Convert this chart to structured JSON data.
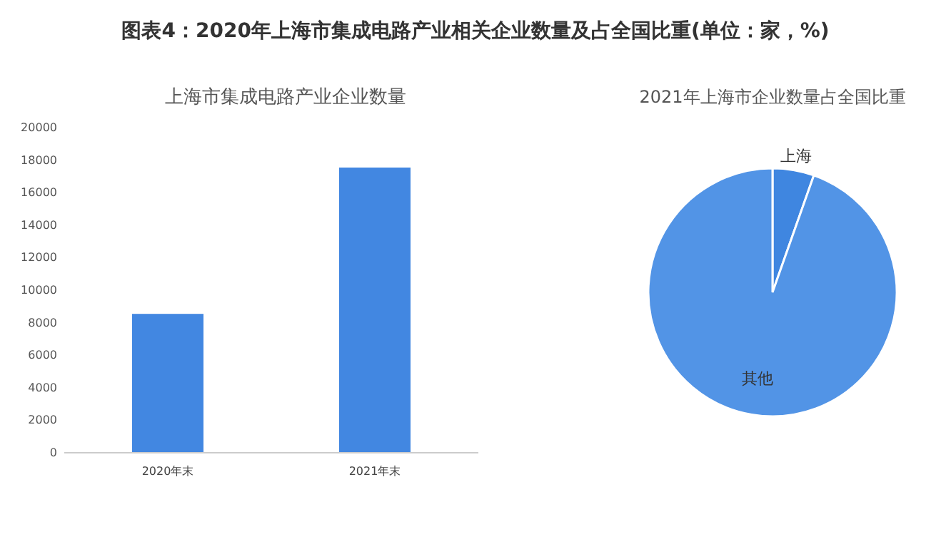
{
  "chart_data": [
    {
      "type": "bar",
      "title": "图表4：2020年上海市集成电路产业相关企业数量及占全国比重(单位：家，%)",
      "subtitle": "上海市集成电路产业企业数量",
      "categories": [
        "2020年末",
        "2021年末"
      ],
      "values": [
        8500,
        17500
      ],
      "color": "#4287e1",
      "ylim": [
        0,
        20000
      ],
      "yticks": [
        0,
        2000,
        4000,
        6000,
        8000,
        10000,
        12000,
        14000,
        16000,
        18000,
        20000
      ]
    },
    {
      "type": "pie",
      "title": "2021年上海市企业数量占全国比重",
      "categories": [
        "上海",
        "其他"
      ],
      "values": [
        5.4,
        94.6
      ],
      "colors": [
        "#3f86e0",
        "#5294e6"
      ]
    }
  ]
}
